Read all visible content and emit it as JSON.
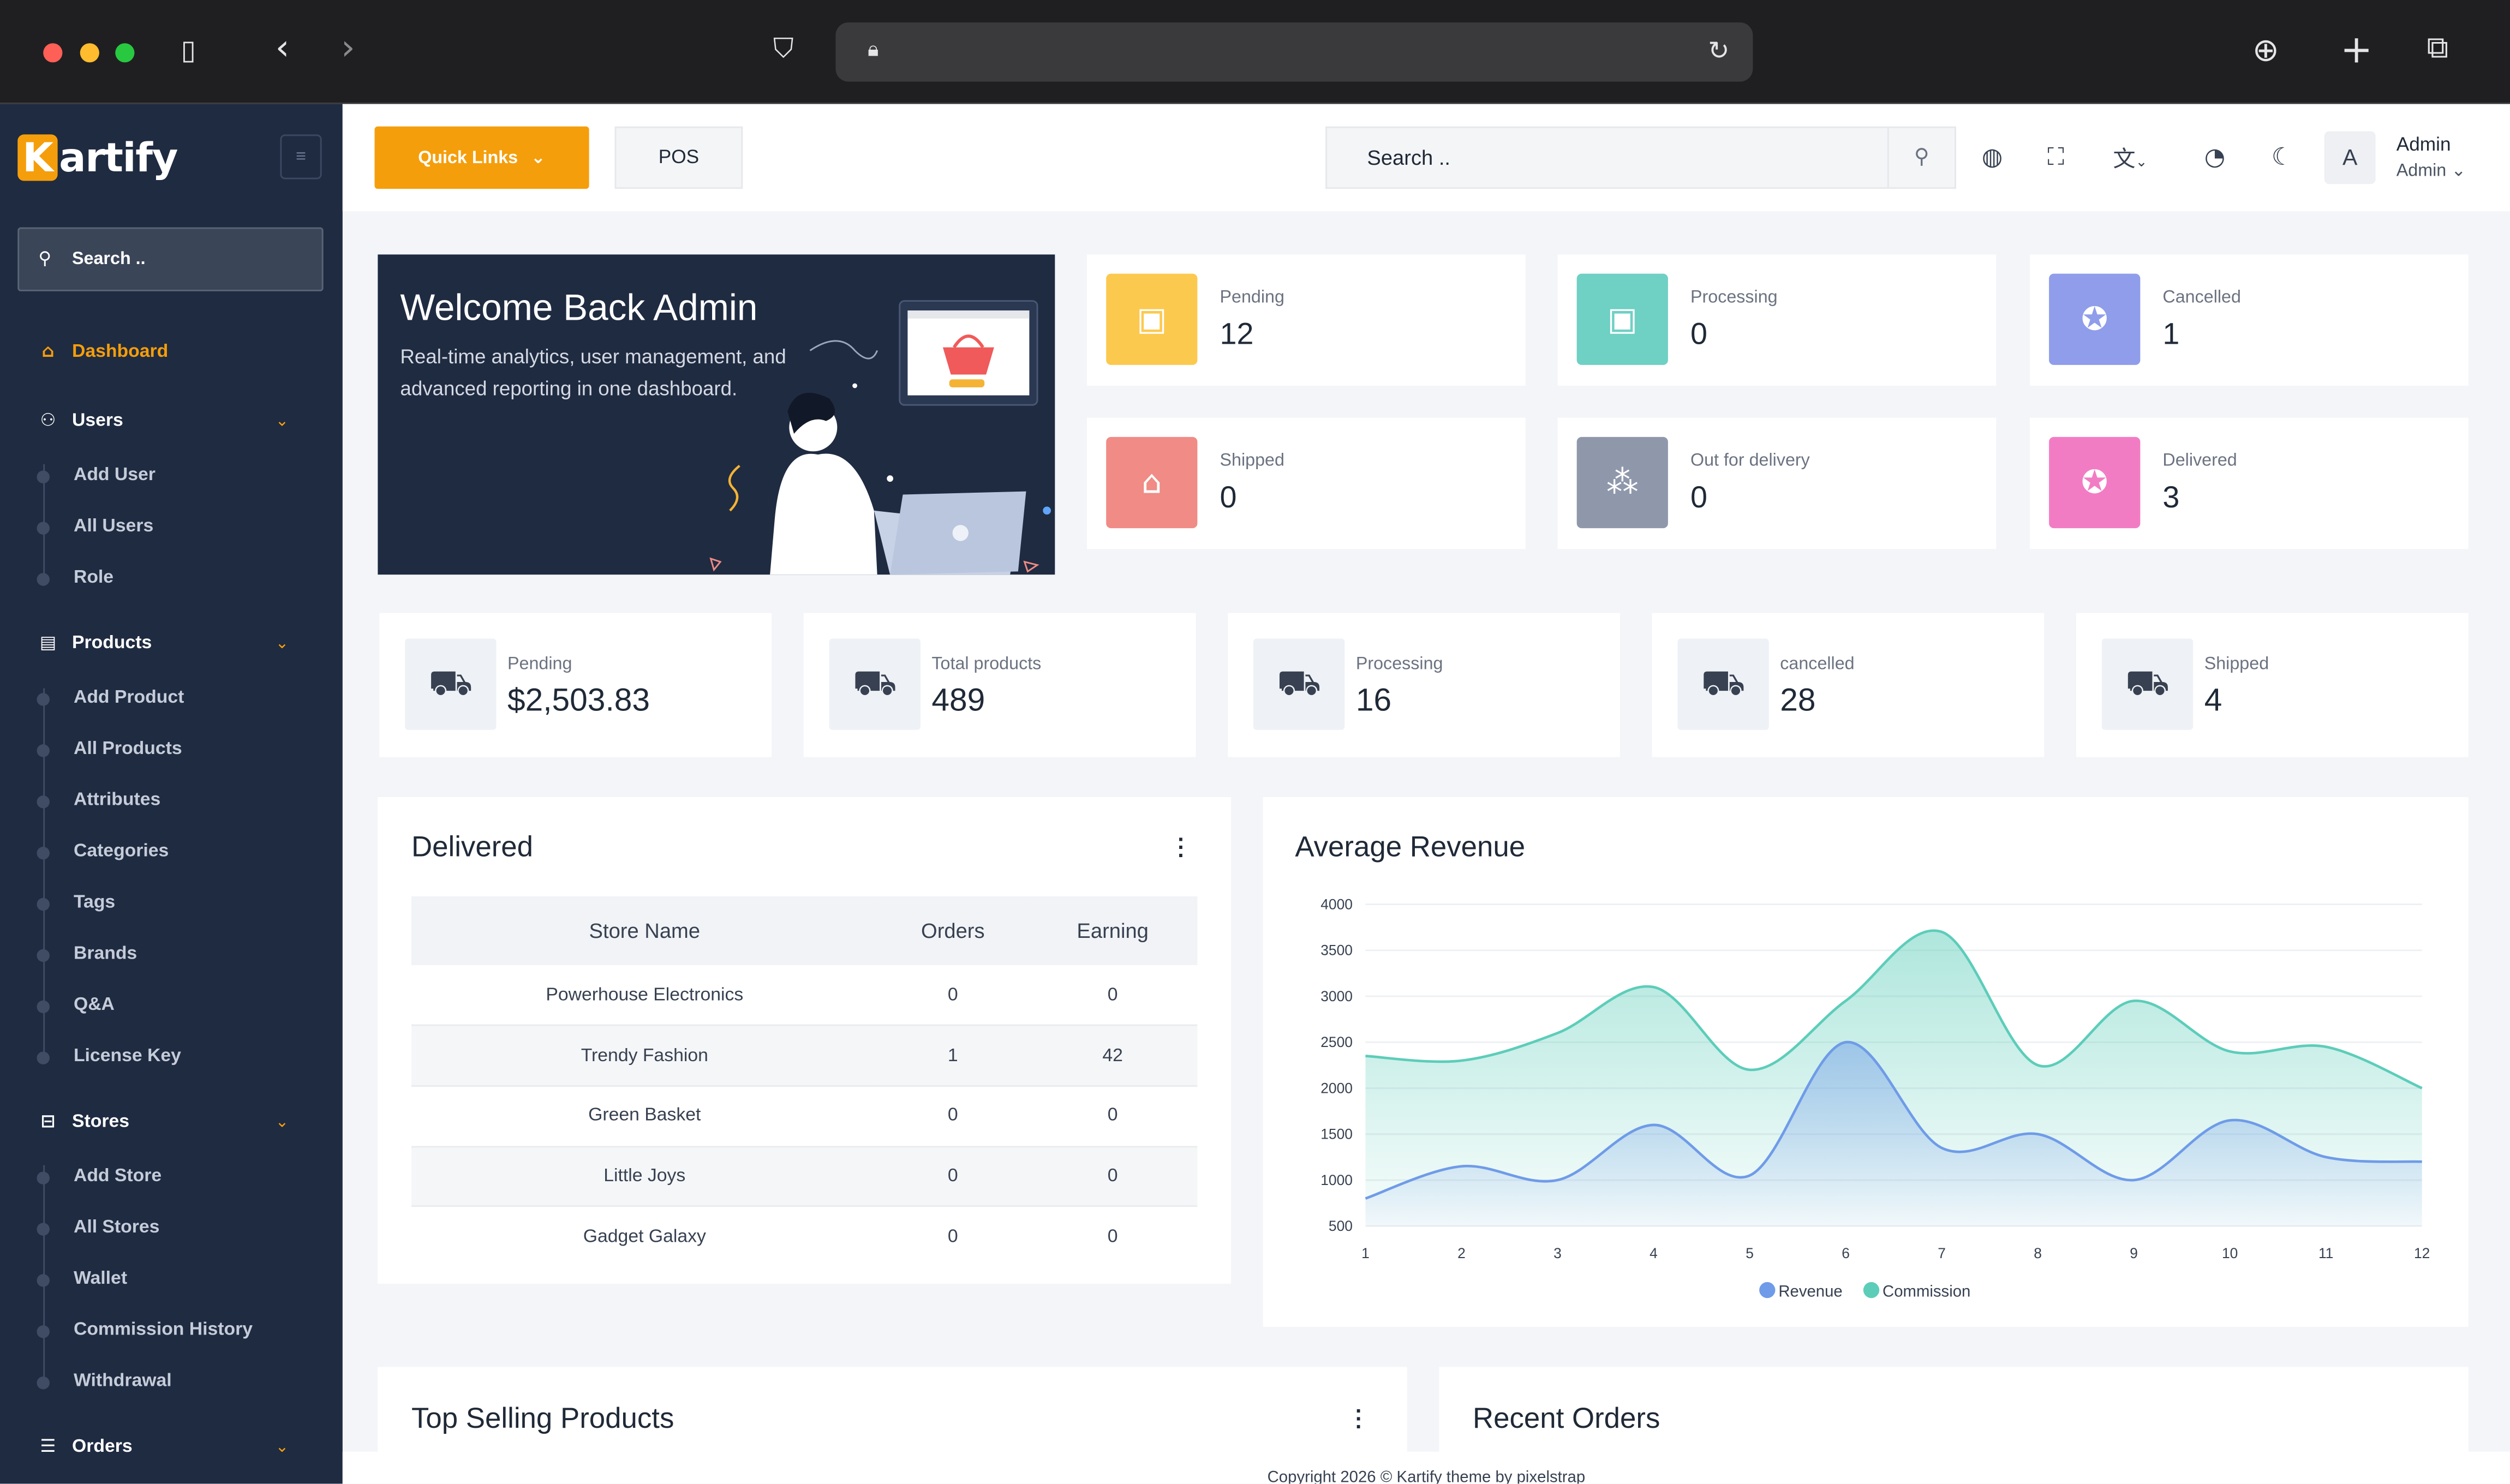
{
  "sidebar": {
    "brand_initial": "K",
    "brand_rest": "artify",
    "search_placeholder": "Search ..",
    "dashboard": "Dashboard",
    "users": {
      "label": "Users",
      "items": [
        "Add User",
        "All Users",
        "Role"
      ]
    },
    "products": {
      "label": "Products",
      "items": [
        "Add Product",
        "All Products",
        "Attributes",
        "Categories",
        "Tags",
        "Brands",
        "Q&A",
        "License Key"
      ]
    },
    "stores": {
      "label": "Stores",
      "items": [
        "Add Store",
        "All Stores",
        "Wallet",
        "Commission History",
        "Withdrawal"
      ]
    },
    "orders": {
      "label": "Orders"
    }
  },
  "header": {
    "quick_links": "Quick Links",
    "pos": "POS",
    "search_placeholder": "Search ..",
    "avatar_letter": "A",
    "user_name": "Admin",
    "user_role": "Admin",
    "icons": [
      "globe-icon",
      "fullscreen-icon",
      "translate-icon",
      "bell-icon",
      "moon-icon"
    ]
  },
  "welcome": {
    "title": "Welcome Back Admin",
    "text": "Real-time analytics, user management, and advanced reporting in one dashboard."
  },
  "status_cards": [
    {
      "label": "Pending",
      "value": "12",
      "color": "#fcc94f"
    },
    {
      "label": "Processing",
      "value": "0",
      "color": "#6fd0c4"
    },
    {
      "label": "Cancelled",
      "value": "1",
      "color": "#8f9dea"
    },
    {
      "label": "Shipped",
      "value": "0",
      "color": "#f08b85"
    },
    {
      "label": "Out for delivery",
      "value": "0",
      "color": "#8f98ab"
    },
    {
      "label": "Delivered",
      "value": "3",
      "color": "#f27cc4"
    }
  ],
  "metrics": [
    {
      "label": "Pending",
      "value": "$2,503.83"
    },
    {
      "label": "Total products",
      "value": "489"
    },
    {
      "label": "Processing",
      "value": "16"
    },
    {
      "label": "cancelled",
      "value": "28"
    },
    {
      "label": "Shipped",
      "value": "4"
    }
  ],
  "delivered": {
    "title": "Delivered",
    "columns": [
      "Store Name",
      "Orders",
      "Earning"
    ],
    "rows": [
      [
        "Powerhouse Electronics",
        "0",
        "0"
      ],
      [
        "Trendy Fashion",
        "1",
        "42"
      ],
      [
        "Green Basket",
        "0",
        "0"
      ],
      [
        "Little Joys",
        "0",
        "0"
      ],
      [
        "Gadget Galaxy",
        "0",
        "0"
      ]
    ]
  },
  "revenue_panel": {
    "title": "Average Revenue"
  },
  "chart_data": {
    "type": "area",
    "title": "Average Revenue",
    "x": [
      1,
      2,
      3,
      4,
      5,
      6,
      7,
      8,
      9,
      10,
      11,
      12
    ],
    "ylim": [
      500,
      4000
    ],
    "yticks": [
      500,
      1000,
      1500,
      2000,
      2500,
      3000,
      3500,
      4000
    ],
    "series": [
      {
        "name": "Revenue",
        "color": "#6f9be8",
        "values": [
          800,
          1150,
          1000,
          1600,
          1050,
          2500,
          1350,
          1500,
          1000,
          1650,
          1250,
          1200
        ]
      },
      {
        "name": "Commission",
        "color": "#5ccdb9",
        "values": [
          2350,
          2300,
          2600,
          3100,
          2200,
          2950,
          3700,
          2250,
          2950,
          2400,
          2450,
          2000
        ]
      }
    ],
    "legend": "bottom"
  },
  "top_selling": {
    "title": "Top Selling Products"
  },
  "recent_orders": {
    "title": "Recent Orders"
  },
  "footer": {
    "text": "Copyright 2026 © Kartify theme by pixelstrap"
  }
}
